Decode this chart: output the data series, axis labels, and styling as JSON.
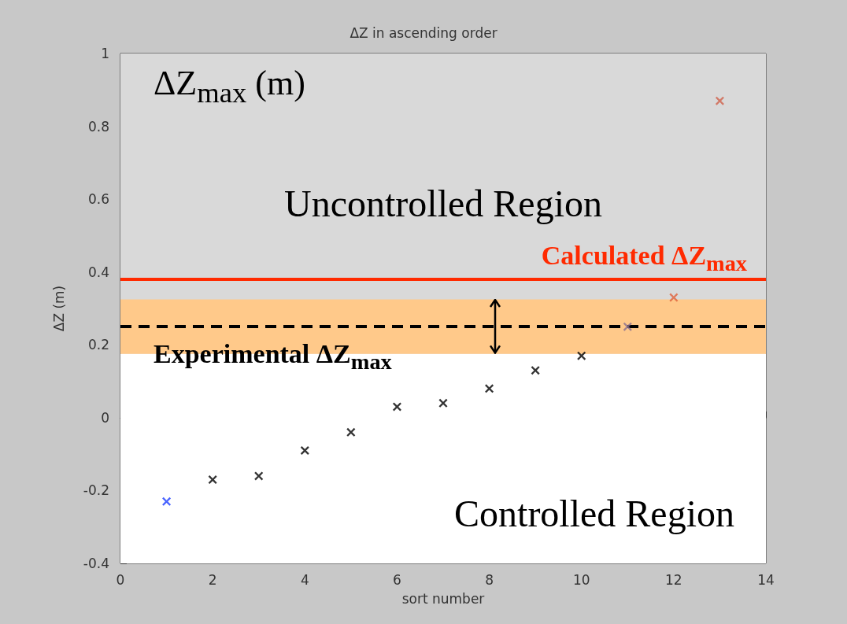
{
  "chart_data": {
    "type": "scatter",
    "title": "ΔZ in ascending order",
    "xlabel": "sort number",
    "ylabel": "ΔZ (m)",
    "x": [
      1,
      2,
      3,
      4,
      5,
      6,
      7,
      8,
      9,
      10,
      11,
      12,
      13
    ],
    "values": [
      -0.23,
      -0.17,
      -0.16,
      -0.09,
      -0.04,
      0.03,
      0.04,
      0.08,
      0.13,
      0.17,
      0.25,
      0.33,
      0.87
    ],
    "colors": [
      "#1a3cff",
      "#000000",
      "#000000",
      "#000000",
      "#000000",
      "#000000",
      "#000000",
      "#000000",
      "#000000",
      "#000000",
      "#8a6f8f",
      "#e0603a",
      "#d0604a"
    ],
    "marker": "cross",
    "xlim": [
      0,
      14
    ],
    "xticks": [
      0,
      2,
      4,
      6,
      8,
      10,
      12,
      14
    ],
    "ylim": [
      -0.4,
      1
    ],
    "yticks": [
      -0.4,
      -0.2,
      0,
      0.2,
      0.4,
      0.6,
      0.8,
      1
    ],
    "bands": [
      {
        "axis": "y",
        "from": 0.175,
        "to": 1,
        "label": "Uncontrolled Region",
        "color": "#d9d9d9"
      },
      {
        "axis": "y",
        "from": -0.4,
        "to": 0.175,
        "label": "Controlled Region",
        "color": "#ffffff"
      },
      {
        "axis": "y",
        "from": 0.175,
        "to": 0.325,
        "label": null,
        "color": "#ffc98a"
      }
    ],
    "ref_lines": [
      {
        "axis": "y",
        "value": 0.38,
        "label": "Calculated ΔZ$_{max}$",
        "color": "#ff2a00",
        "line_style": "solid"
      },
      {
        "axis": "y",
        "value": 0.25,
        "label": "Experimental ΔZ$_{max}$",
        "color": "#000000",
        "line_style": "dashed"
      }
    ],
    "annotations": [
      "ΔZ$_{max}$ (m)"
    ]
  }
}
